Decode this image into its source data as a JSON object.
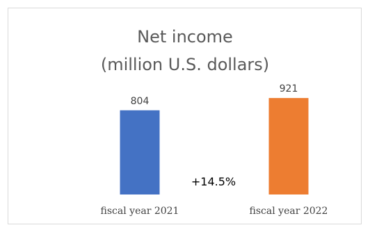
{
  "chart_data": {
    "type": "bar",
    "title": "Net income\n(million U.S. dollars)",
    "categories": [
      "fiscal year 2021",
      "fiscal year 2022"
    ],
    "values": [
      804,
      921
    ],
    "data_labels": [
      "804",
      "921"
    ],
    "colors": [
      "#4472C4",
      "#ED7D31"
    ],
    "annotation": "+14.5%",
    "xlabel": "",
    "ylabel": "",
    "ylim": [
      0,
      1000
    ],
    "grid": false,
    "legend": "none"
  }
}
